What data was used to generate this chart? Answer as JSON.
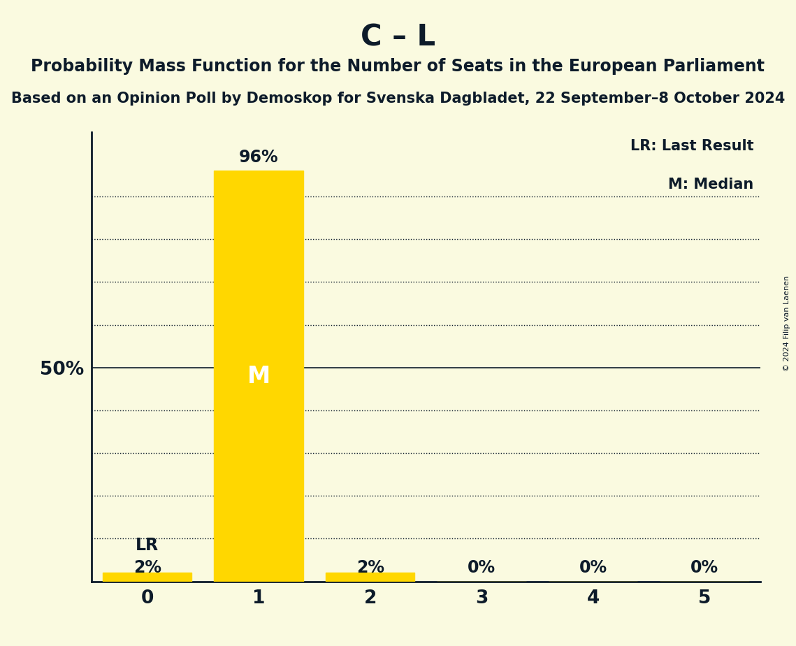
{
  "title": "C – L",
  "subtitle": "Probability Mass Function for the Number of Seats in the European Parliament",
  "sub_subtitle": "Based on an Opinion Poll by Demoskop for Svenska Dagbladet, 22 September–8 October 2024",
  "copyright": "© 2024 Filip van Laenen",
  "x_values": [
    0,
    1,
    2,
    3,
    4,
    5
  ],
  "y_values": [
    0.02,
    0.96,
    0.02,
    0.0,
    0.0,
    0.0
  ],
  "bar_color": "#FFD700",
  "background_color": "#FAFAE0",
  "text_color": "#0D1B2A",
  "median": 1,
  "last_result": 0,
  "bar_labels": [
    "2%",
    "96%",
    "2%",
    "0%",
    "0%",
    "0%"
  ],
  "ylabel_50": "50%",
  "legend_lr": "LR: Last Result",
  "legend_m": "M: Median",
  "title_fontsize": 30,
  "subtitle_fontsize": 17,
  "sub_subtitle_fontsize": 15,
  "ylim": [
    0,
    1.05
  ],
  "xlim": [
    -0.5,
    5.5
  ],
  "grid_y_positions": [
    0.1,
    0.2,
    0.3,
    0.4,
    0.5,
    0.6,
    0.7,
    0.8,
    0.9
  ]
}
